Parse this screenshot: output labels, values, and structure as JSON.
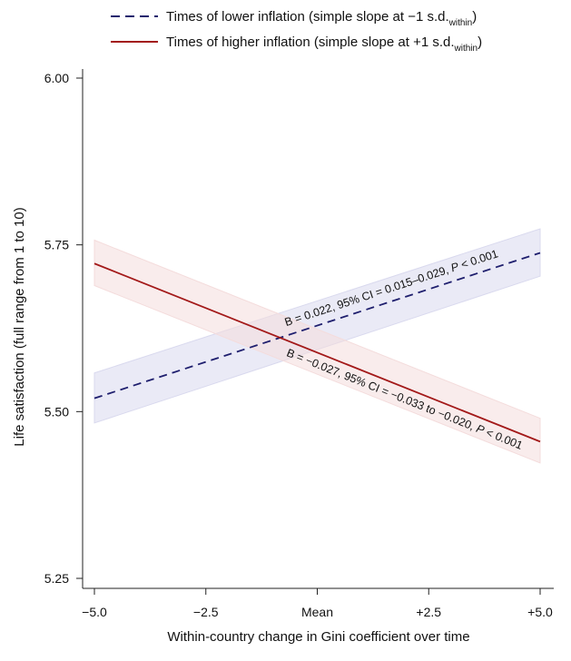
{
  "chart_data": {
    "type": "line",
    "x": [
      -5.0,
      5.0
    ],
    "xlim": [
      -5.0,
      5.0
    ],
    "ylim": [
      5.25,
      6.0
    ],
    "xlabel": "Within-country change in Gini coefficient over time",
    "ylabel": "Life satisfaction (full range from 1 to 10)",
    "x_ticks": [
      {
        "value": -5.0,
        "label": "−5.0"
      },
      {
        "value": -2.5,
        "label": "−2.5"
      },
      {
        "value": 0.0,
        "label": "Mean"
      },
      {
        "value": 2.5,
        "label": "+2.5"
      },
      {
        "value": 5.0,
        "label": "+5.0"
      }
    ],
    "y_ticks": [
      {
        "value": 6.0,
        "label": "6.00"
      },
      {
        "value": 5.75,
        "label": "5.75"
      },
      {
        "value": 5.5,
        "label": "5.50"
      },
      {
        "value": 5.25,
        "label": "5.25"
      }
    ],
    "series": [
      {
        "name": "lower",
        "legend_main": "Times of lower inflation (simple slope at −1 s.d.",
        "legend_sub": "within",
        "legend_end": ")",
        "style": "dashed",
        "color": "#1f1f6e",
        "band_color": "#d9d9ee",
        "values": [
          5.52,
          5.738
        ],
        "ci_lower": [
          5.483,
          5.703
        ],
        "ci_upper": [
          5.558,
          5.774
        ],
        "annotation_prefix": "B = 0.022, 95% CI = 0.015–0.029, ",
        "annotation_p": "P",
        "annotation_suffix": " < 0.001"
      },
      {
        "name": "higher",
        "legend_main": "Times of higher inflation (simple slope at +1 s.d.",
        "legend_sub": "within",
        "legend_end": ")",
        "style": "solid",
        "color": "#a31919",
        "band_color": "#f4dcdc",
        "values": [
          5.722,
          5.455
        ],
        "ci_lower": [
          5.689,
          5.423
        ],
        "ci_upper": [
          5.757,
          5.49
        ],
        "annotation_prefix": "B = −0.027, 95% CI = −0.033 to −0.020, ",
        "annotation_p": "P",
        "annotation_suffix": " < 0.001"
      }
    ]
  }
}
